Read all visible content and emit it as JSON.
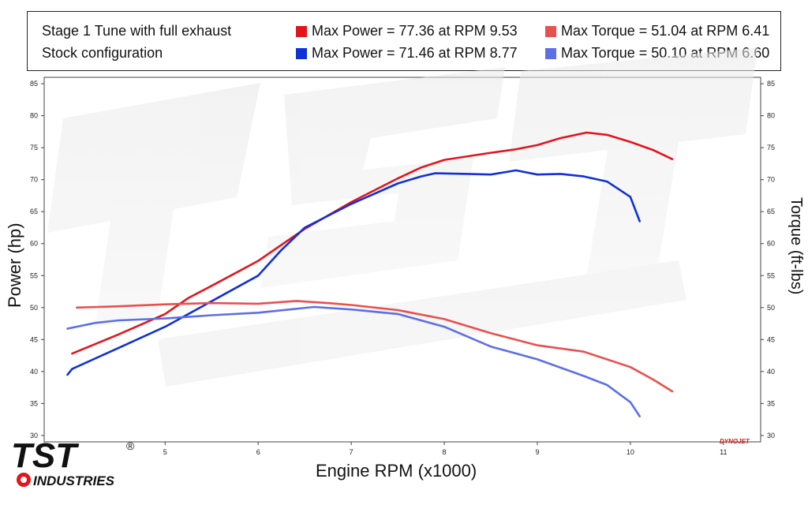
{
  "legend": {
    "series_a_label": "Stage 1 Tune with full exhaust",
    "series_b_label": "Stock configuration",
    "a_power": "Max Power = 77.36 at RPM 9.53",
    "b_power": "Max Power = 71.46 at RPM 8.77",
    "a_torque": "Max Torque = 51.04 at RPM 6.41",
    "b_torque": "Max Torque = 50.10 at RPM 6.60"
  },
  "brand": {
    "logo_text": "TST",
    "logo_sub": "INDUSTRIES",
    "reg": "®",
    "dyno": "DYNOJET"
  },
  "colors": {
    "tuned_power": "#e3141c",
    "tuned_torque": "#e8504f",
    "stock_power": "#1030d8",
    "stock_torque": "#5d6fe6"
  },
  "chart_data": {
    "type": "line",
    "xlabel": "Engine RPM (x1000)",
    "ylabel": "Power (hp)",
    "y2label": "Torque (ft-lbs)",
    "xlim": [
      3.7,
      11.4
    ],
    "ylim": [
      29,
      86
    ],
    "x_ticks": [
      5,
      6,
      7,
      8,
      9,
      10,
      11
    ],
    "y_ticks": [
      30,
      35,
      40,
      45,
      50,
      55,
      60,
      65,
      70,
      75,
      80,
      85
    ],
    "grid": false,
    "series": [
      {
        "key": "tuned_power",
        "x": [
          4.0,
          4.5,
          5.0,
          5.25,
          5.5,
          6.0,
          6.5,
          7.0,
          7.5,
          7.75,
          8.0,
          8.5,
          8.75,
          9.0,
          9.25,
          9.53,
          9.75,
          10.0,
          10.25,
          10.45
        ],
        "values": [
          42.8,
          45.8,
          49.0,
          51.5,
          53.4,
          57.3,
          62.3,
          66.5,
          70.2,
          71.9,
          73.1,
          74.2,
          74.7,
          75.4,
          76.5,
          77.36,
          77.0,
          75.9,
          74.6,
          73.2
        ]
      },
      {
        "key": "stock_power",
        "x": [
          3.95,
          4.0,
          4.5,
          5.0,
          5.5,
          6.0,
          6.25,
          6.5,
          7.0,
          7.5,
          7.75,
          7.9,
          8.25,
          8.5,
          8.77,
          9.0,
          9.25,
          9.5,
          9.75,
          10.0,
          10.1
        ],
        "values": [
          39.5,
          40.4,
          43.7,
          47.0,
          51.0,
          55.0,
          59.0,
          62.5,
          66.2,
          69.4,
          70.5,
          71.0,
          70.9,
          70.8,
          71.46,
          70.8,
          70.9,
          70.5,
          69.7,
          67.3,
          63.5
        ]
      },
      {
        "key": "tuned_torque",
        "x": [
          4.05,
          4.5,
          5.0,
          5.5,
          6.0,
          6.41,
          6.75,
          7.0,
          7.5,
          8.0,
          8.5,
          9.0,
          9.5,
          10.0,
          10.25,
          10.45
        ],
        "values": [
          50.0,
          50.2,
          50.5,
          50.7,
          50.6,
          51.04,
          50.7,
          50.4,
          49.6,
          48.2,
          46.0,
          44.1,
          43.1,
          40.7,
          38.7,
          36.9
        ]
      },
      {
        "key": "stock_torque",
        "x": [
          3.95,
          4.25,
          4.5,
          5.0,
          5.5,
          6.0,
          6.6,
          7.0,
          7.5,
          8.0,
          8.5,
          9.0,
          9.5,
          9.75,
          10.0,
          10.1
        ],
        "values": [
          46.7,
          47.6,
          48.0,
          48.3,
          48.8,
          49.2,
          50.1,
          49.7,
          49.0,
          47.0,
          43.9,
          41.9,
          39.3,
          37.9,
          35.2,
          33.0
        ]
      }
    ]
  }
}
